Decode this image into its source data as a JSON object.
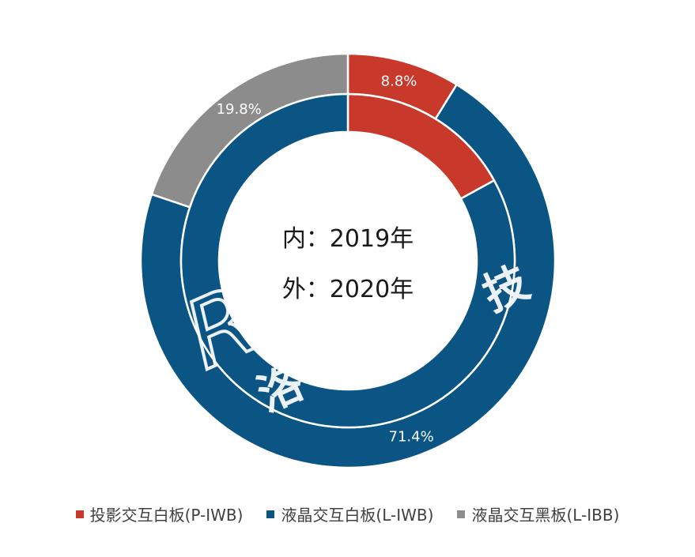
{
  "chart_data": {
    "type": "pie",
    "center_lines": [
      "内：2019年",
      "外：2020年"
    ],
    "watermark": {
      "latin": "Runto",
      "chinese": "洛图科技"
    },
    "categories": [
      "投影交互白板(P-IWB)",
      "液晶交互白板(L-IWB)",
      "液晶交互黑板(L-IBB)"
    ],
    "colors": [
      "#c8392b",
      "#0b5585",
      "#8c8c8c"
    ],
    "series": [
      {
        "ring": "inner",
        "values": [
          17.0,
          83.0,
          0.0
        ],
        "value_labels": [
          "",
          "",
          ""
        ]
      },
      {
        "ring": "outer",
        "values": [
          8.8,
          71.4,
          19.8
        ],
        "value_labels": [
          "8.8%",
          "71.4%",
          "19.8%"
        ]
      }
    ]
  }
}
